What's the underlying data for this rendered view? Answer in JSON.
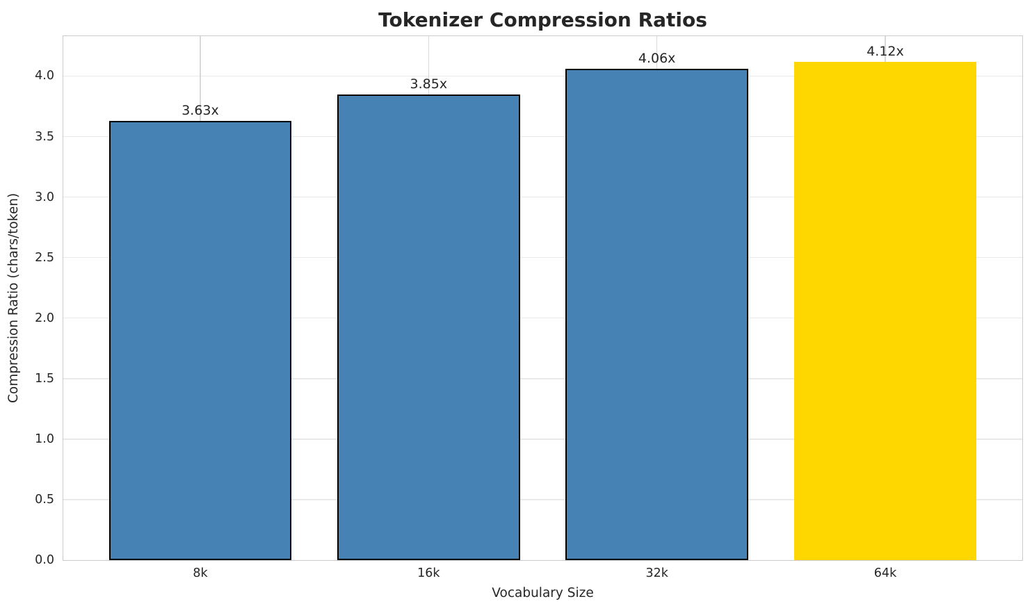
{
  "chart_data": {
    "type": "bar",
    "title": "Tokenizer Compression Ratios",
    "xlabel": "Vocabulary Size",
    "ylabel": "Compression Ratio (chars/token)",
    "categories": [
      "8k",
      "16k",
      "32k",
      "64k"
    ],
    "values": [
      3.63,
      3.85,
      4.06,
      4.12
    ],
    "bar_labels": [
      "3.63x",
      "3.85x",
      "4.06x",
      "4.12x"
    ],
    "bar_colors": [
      "#4682b4",
      "#4682b4",
      "#4682b4",
      "#ffd700"
    ],
    "bar_edge_colors": [
      "#000000",
      "#000000",
      "#000000",
      "none"
    ],
    "ylim": [
      0,
      4.33
    ],
    "yticks": [
      0,
      0.5,
      1,
      1.5,
      2,
      2.5,
      3,
      3.5,
      4
    ],
    "ytick_labels": [
      "0.0",
      "0.5",
      "1.0",
      "1.5",
      "2.0",
      "2.5",
      "3.0",
      "3.5",
      "4.0"
    ],
    "grid": true,
    "legend_position": "none",
    "highlight_category": "64k",
    "accent_colors": {
      "bar": "#4682b4",
      "highlight": "#ffd700",
      "edge": "#000000"
    }
  }
}
